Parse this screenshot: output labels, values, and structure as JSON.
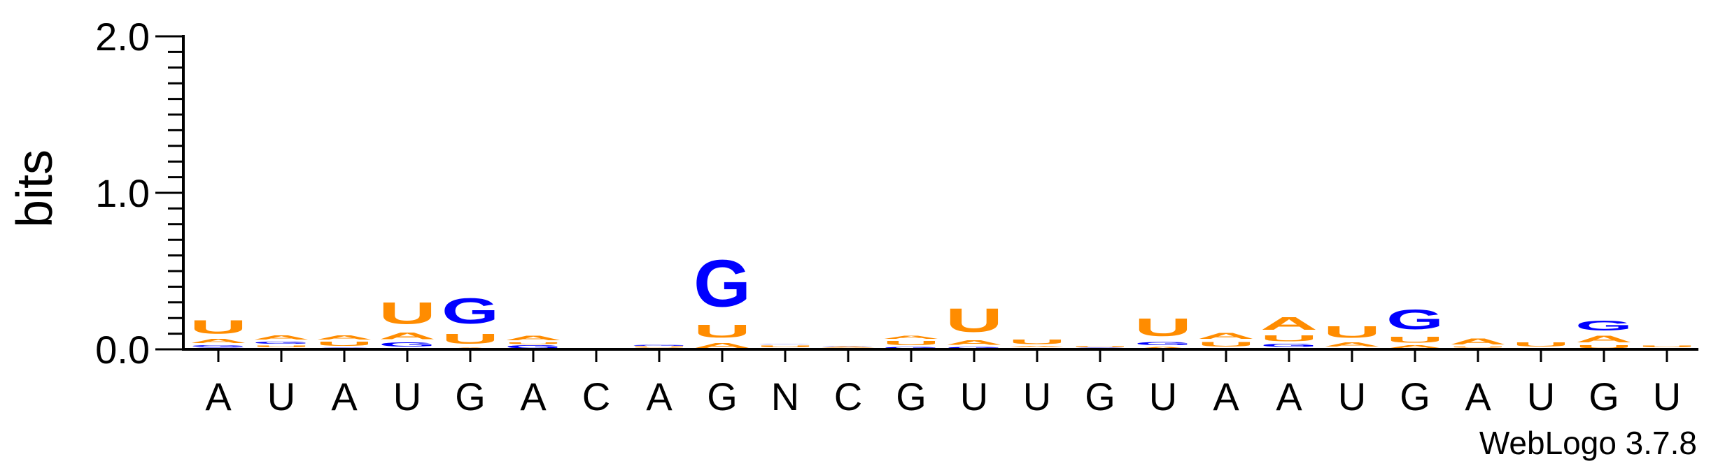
{
  "chart_data": {
    "type": "sequence-logo",
    "ylabel": "bits",
    "ylim": [
      0,
      2
    ],
    "yticks": [
      {
        "value": 0,
        "label": "0.0"
      },
      {
        "value": 1,
        "label": "1.0"
      },
      {
        "value": 2,
        "label": "2.0"
      }
    ],
    "positions": [
      "A",
      "U",
      "A",
      "U",
      "G",
      "A",
      "C",
      "A",
      "G",
      "N",
      "C",
      "G",
      "U",
      "U",
      "G",
      "U",
      "A",
      "A",
      "U",
      "G",
      "A",
      "U",
      "G",
      "U"
    ],
    "colors": {
      "A": "#ff8c00",
      "U": "#ff8c00",
      "G": "#0000ff",
      "C": "#0000ff"
    },
    "stacks": [
      [
        [
          "C",
          0.012
        ],
        [
          "G",
          0.02
        ],
        [
          "A",
          0.04
        ],
        [
          "U",
          0.14
        ]
      ],
      [
        [
          "C",
          0.01
        ],
        [
          "U",
          0.02
        ],
        [
          "G",
          0.025
        ],
        [
          "A",
          0.04
        ],
        [
          "U",
          0.0
        ]
      ],
      [
        [
          "G",
          0.015
        ],
        [
          "U",
          0.04
        ],
        [
          "A",
          0.04
        ]
      ],
      [
        [
          "C",
          0.01
        ],
        [
          "G",
          0.04
        ],
        [
          "A",
          0.07
        ],
        [
          "U",
          0.22
        ]
      ],
      [
        [
          "A",
          0.015
        ],
        [
          "U",
          0.1
        ],
        [
          "G",
          0.26
        ]
      ],
      [
        [
          "G",
          0.03
        ],
        [
          "U",
          0.02
        ],
        [
          "A",
          0.045
        ]
      ],
      [],
      [
        [
          "C",
          0.005
        ],
        [
          "A",
          0.005
        ],
        [
          "U",
          0.01
        ],
        [
          "G",
          0.01
        ]
      ],
      [
        [
          "A",
          0.05
        ],
        [
          "U",
          0.13
        ],
        [
          "G",
          0.48
        ]
      ],
      [
        [
          "A",
          0.01
        ],
        [
          "U",
          0.02
        ],
        [
          "G",
          0.005
        ]
      ],
      [
        [
          "U",
          0.01
        ],
        [
          "A",
          0.01
        ],
        [
          "G",
          0.005
        ]
      ],
      [
        [
          "G",
          0.02
        ],
        [
          "U",
          0.04
        ],
        [
          "A",
          0.03
        ]
      ],
      [
        [
          "G",
          0.02
        ],
        [
          "A",
          0.045
        ],
        [
          "U",
          0.24
        ]
      ],
      [
        [
          "G",
          0.01
        ],
        [
          "A",
          0.015
        ],
        [
          "U",
          0.045
        ]
      ],
      [
        [
          "G",
          0.012
        ],
        [
          "U",
          0.01
        ]
      ],
      [
        [
          "A",
          0.02
        ],
        [
          "G",
          0.03
        ],
        [
          "U",
          0.18
        ]
      ],
      [
        [
          "G",
          0.01
        ],
        [
          "U",
          0.045
        ],
        [
          "A",
          0.06
        ]
      ],
      [
        [
          "C",
          0.01
        ],
        [
          "G",
          0.03
        ],
        [
          "U",
          0.06
        ],
        [
          "A",
          0.13
        ]
      ],
      [
        [
          "G",
          0.01
        ],
        [
          "A",
          0.04
        ],
        [
          "U",
          0.12
        ]
      ],
      [
        [
          "A",
          0.03
        ],
        [
          "U",
          0.06
        ],
        [
          "G",
          0.2
        ]
      ],
      [
        [
          "G",
          0.01
        ],
        [
          "U",
          0.01
        ],
        [
          "A",
          0.06
        ]
      ],
      [
        [
          "G",
          0.01
        ],
        [
          "U",
          0.04
        ]
      ],
      [
        [
          "U",
          0.03
        ],
        [
          "A",
          0.07
        ],
        [
          "G",
          0.1
        ]
      ],
      [
        [
          "G",
          0.01
        ],
        [
          "U",
          0.02
        ]
      ]
    ],
    "credit": "WebLogo 3.7.8"
  }
}
